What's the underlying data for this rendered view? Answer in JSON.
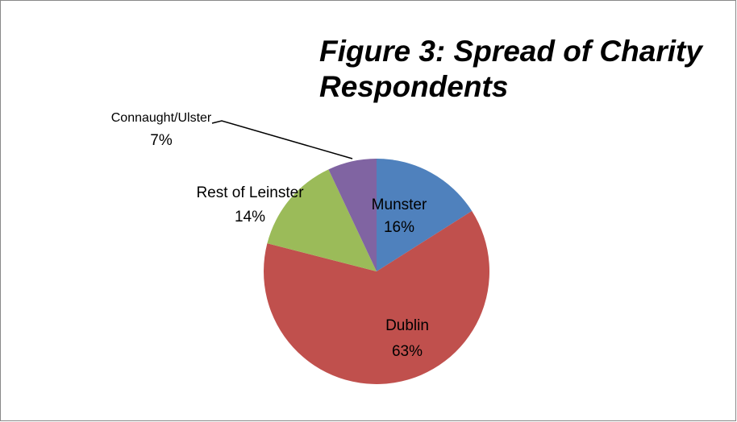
{
  "chart_data": {
    "type": "pie",
    "title": "Figure 3: Spread of Charity Respondents",
    "categories": [
      "Munster",
      "Dublin",
      "Rest of Leinster",
      "Connaught/Ulster"
    ],
    "values": [
      16,
      63,
      14,
      7
    ],
    "value_labels": [
      "16%",
      "63%",
      "14%",
      "7%"
    ],
    "colors": [
      "#4f81bd",
      "#c0504d",
      "#9bbb59",
      "#8064a2"
    ]
  }
}
